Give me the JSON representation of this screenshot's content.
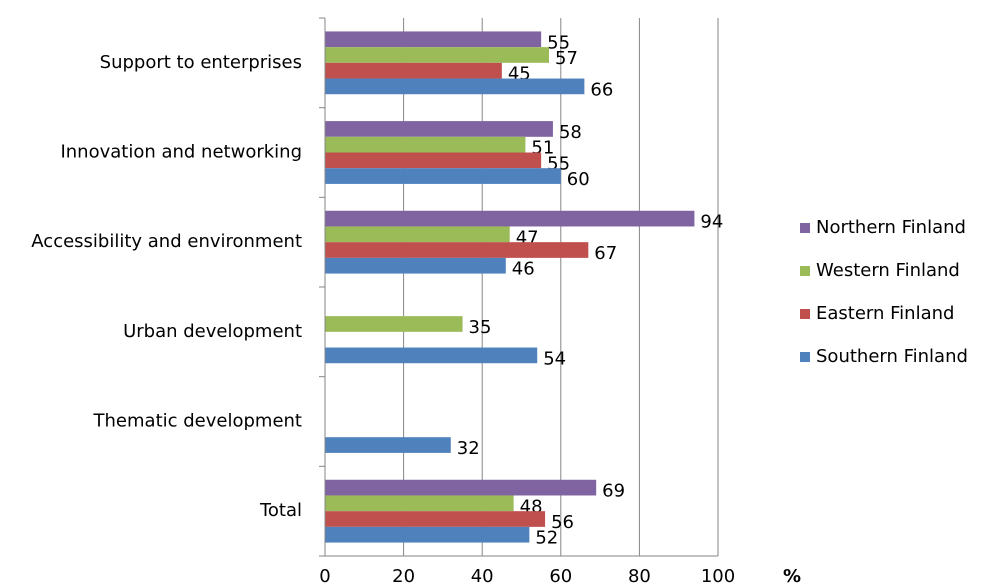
{
  "chart_data": {
    "type": "hbar",
    "x_label": "%",
    "categories": [
      "Support to enterprises",
      "Innovation and networking",
      "Accessibility and environment",
      "Urban development",
      "Thematic development",
      "Total"
    ],
    "series": [
      {
        "name": "Northern Finland",
        "color": "#8064a2",
        "values": [
          55,
          58,
          94,
          null,
          null,
          69
        ]
      },
      {
        "name": "Western Finland",
        "color": "#9bbb59",
        "values": [
          57,
          51,
          47,
          35,
          null,
          48
        ]
      },
      {
        "name": "Eastern Finland",
        "color": "#c0504d",
        "values": [
          45,
          55,
          67,
          null,
          null,
          56
        ]
      },
      {
        "name": "Southern Finland",
        "color": "#4f81bd",
        "values": [
          66,
          60,
          46,
          54,
          32,
          52
        ]
      }
    ],
    "xlim": [
      0,
      100
    ],
    "xticks": [
      0,
      20,
      40,
      60,
      80,
      100
    ],
    "grid": true,
    "legend": "right"
  }
}
